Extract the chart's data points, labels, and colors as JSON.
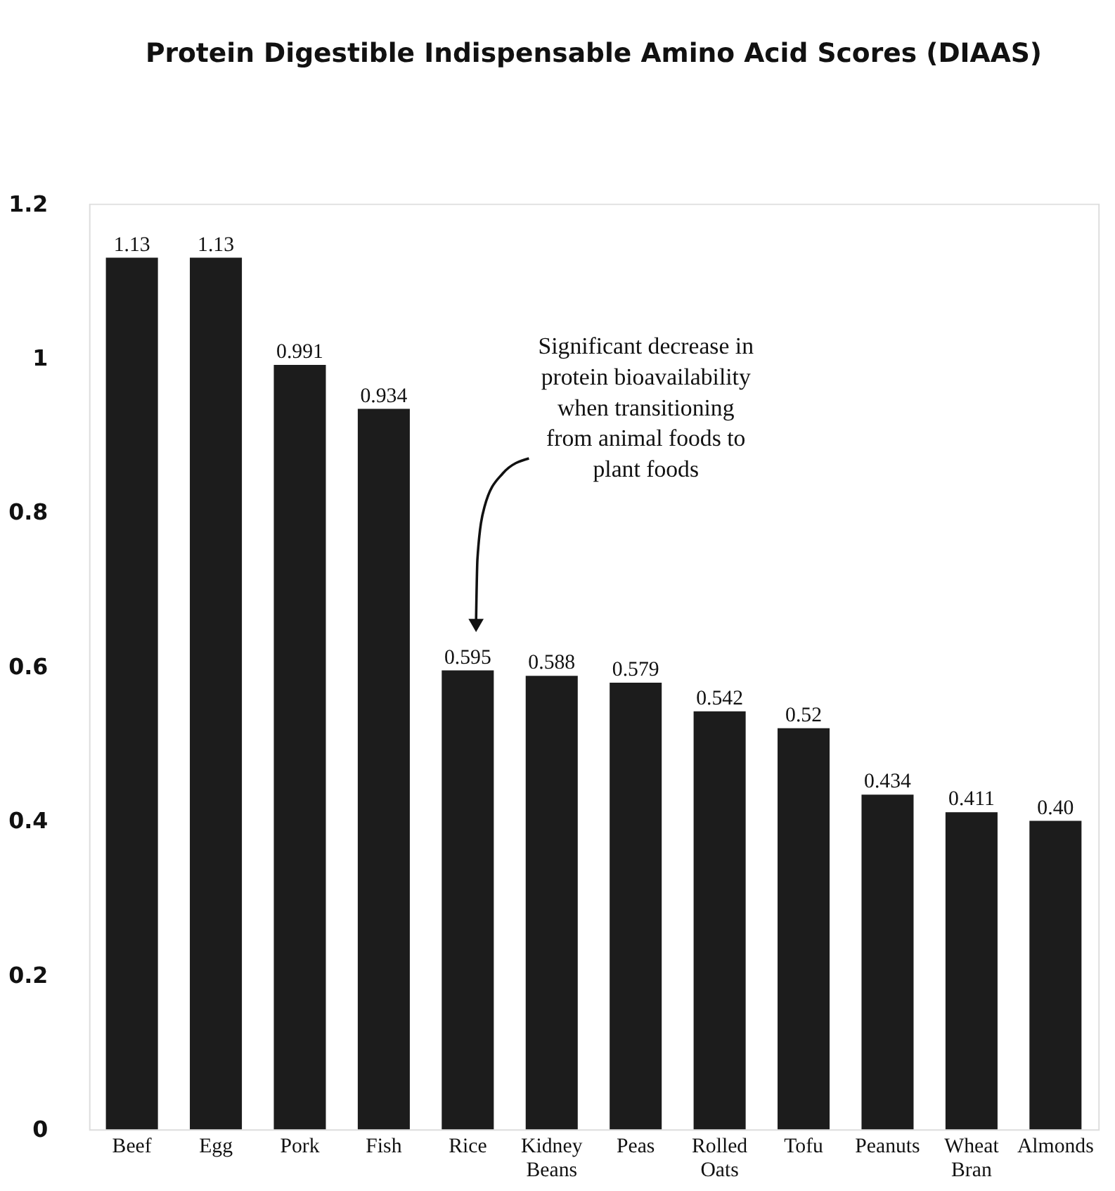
{
  "chart_data": {
    "type": "bar",
    "title": "Protein Digestible Indispensable Amino Acid Scores (DIAAS)",
    "categories": [
      "Beef",
      "Egg",
      "Pork",
      "Fish",
      "Rice",
      "Kidney Beans",
      "Peas",
      "Rolled Oats",
      "Tofu",
      "Peanuts",
      "Wheat Bran",
      "Almonds"
    ],
    "values": [
      1.13,
      1.13,
      0.991,
      0.934,
      0.595,
      0.588,
      0.579,
      0.542,
      0.52,
      0.434,
      0.411,
      0.4
    ],
    "value_labels": [
      "1.13",
      "1.13",
      "0.991",
      "0.934",
      "0.595",
      "0.588",
      "0.579",
      "0.542",
      "0.52",
      "0.434",
      "0.411",
      "0.40"
    ],
    "color": "#1c1c1c",
    "ylim": [
      0,
      1.2
    ],
    "yticks": [
      0,
      0.2,
      0.4,
      0.6,
      0.8,
      {
        "value": 1,
        "label": "1"
      },
      1.2
    ],
    "grid": false,
    "annotations": [
      "Significant decrease in\nprotein bioavailability\nwhen transitioning\nfrom animal foods to\nplant foods"
    ]
  }
}
